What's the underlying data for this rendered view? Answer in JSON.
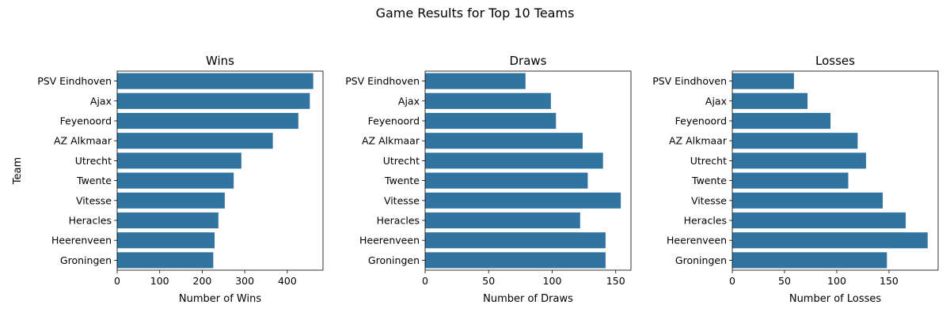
{
  "suptitle": "Game Results for Top 10 Teams",
  "ylabel": "Team",
  "bar_color": "#3274a1",
  "chart_data": [
    {
      "type": "bar",
      "orientation": "horizontal",
      "title": "Wins",
      "xlabel": "Number of Wins",
      "categories": [
        "PSV Eindhoven",
        "Ajax",
        "Feyenoord",
        "AZ Alkmaar",
        "Utrecht",
        "Twente",
        "Vitesse",
        "Heracles",
        "Heerenveen",
        "Groningen"
      ],
      "values": [
        461,
        453,
        426,
        366,
        292,
        274,
        253,
        238,
        229,
        226
      ],
      "xlim": [
        0,
        484
      ],
      "xticks": [
        0,
        100,
        200,
        300,
        400
      ]
    },
    {
      "type": "bar",
      "orientation": "horizontal",
      "title": "Draws",
      "xlabel": "Number of Draws",
      "categories": [
        "PSV Eindhoven",
        "Ajax",
        "Feyenoord",
        "AZ Alkmaar",
        "Utrecht",
        "Twente",
        "Vitesse",
        "Heracles",
        "Heerenveen",
        "Groningen"
      ],
      "values": [
        79,
        99,
        103,
        124,
        140,
        128,
        154,
        122,
        142,
        142
      ],
      "xlim": [
        0,
        162
      ],
      "xticks": [
        0,
        50,
        100,
        150
      ]
    },
    {
      "type": "bar",
      "orientation": "horizontal",
      "title": "Losses",
      "xlabel": "Number of Losses",
      "categories": [
        "PSV Eindhoven",
        "Ajax",
        "Feyenoord",
        "AZ Alkmaar",
        "Utrecht",
        "Twente",
        "Vitesse",
        "Heracles",
        "Heerenveen",
        "Groningen"
      ],
      "values": [
        59,
        72,
        94,
        120,
        128,
        111,
        144,
        166,
        187,
        148
      ],
      "xlim": [
        0,
        197
      ],
      "xticks": [
        0,
        50,
        100,
        150
      ]
    }
  ]
}
